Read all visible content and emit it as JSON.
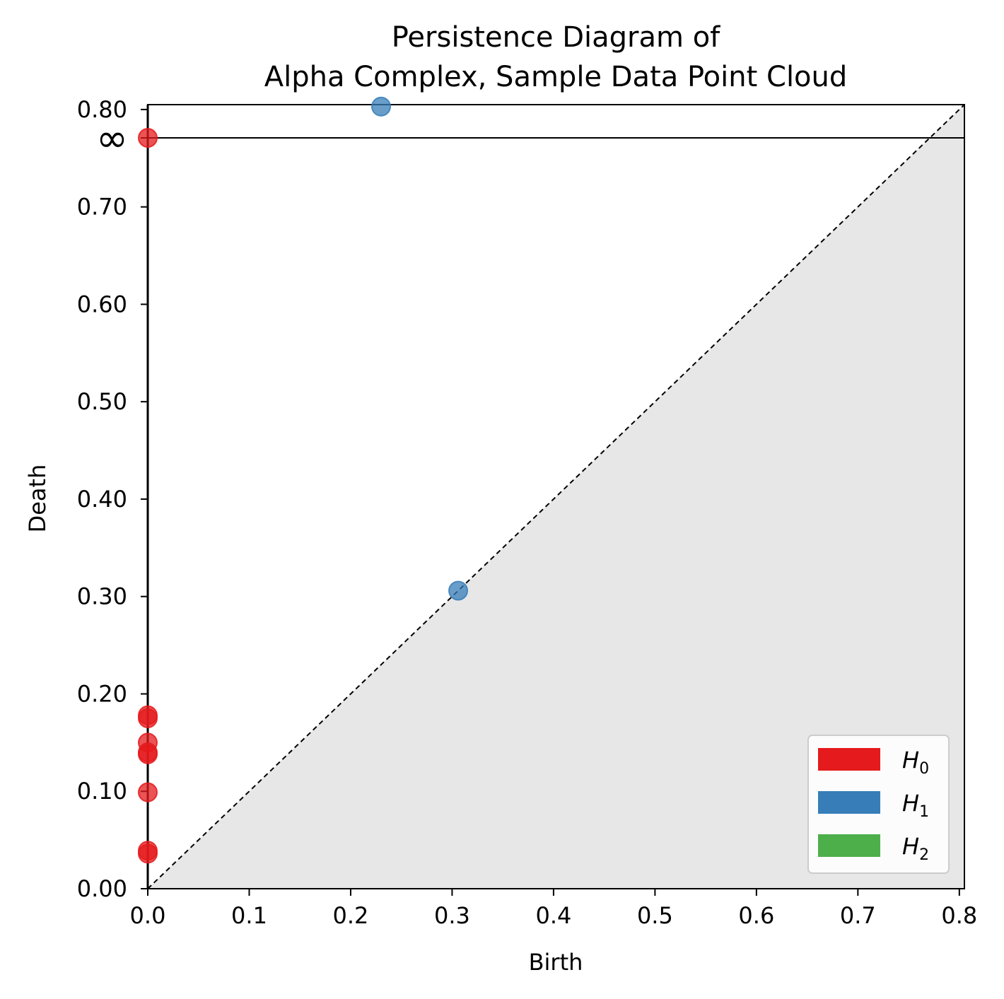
{
  "chart_data": {
    "type": "scatter",
    "title_lines": [
      "Persistence Diagram of",
      "Alpha Complex, Sample Data Point Cloud"
    ],
    "xlabel": "Birth",
    "ylabel": "Death",
    "xlim": [
      0.0,
      0.805
    ],
    "ylim": [
      0.0,
      0.805
    ],
    "infinity_label": "∞",
    "x_ticks": [
      "0.0",
      "0.1",
      "0.2",
      "0.3",
      "0.4",
      "0.5",
      "0.6",
      "0.7",
      "0.8"
    ],
    "x_tick_values": [
      0.0,
      0.1,
      0.2,
      0.3,
      0.4,
      0.5,
      0.6,
      0.7,
      0.8
    ],
    "y_ticks": [
      "0.00",
      "0.10",
      "0.20",
      "0.30",
      "0.40",
      "0.50",
      "0.60",
      "0.70",
      "0.80"
    ],
    "y_tick_values": [
      0.0,
      0.1,
      0.2,
      0.3,
      0.4,
      0.5,
      0.6,
      0.7,
      0.8
    ],
    "diagonal": true,
    "shade_below_diagonal": true,
    "legend_position": "lower right",
    "series": [
      {
        "name": "H0",
        "label_main": "H",
        "label_sub": "0",
        "color": "#e41a1c",
        "points": [
          {
            "birth": 0.0,
            "death": "inf"
          },
          {
            "birth": 0.0,
            "death": 0.178
          },
          {
            "birth": 0.0,
            "death": 0.175
          },
          {
            "birth": 0.0,
            "death": 0.15
          },
          {
            "birth": 0.0,
            "death": 0.14
          },
          {
            "birth": 0.0,
            "death": 0.138
          },
          {
            "birth": 0.0,
            "death": 0.099
          },
          {
            "birth": 0.0,
            "death": 0.039
          },
          {
            "birth": 0.0,
            "death": 0.036
          }
        ]
      },
      {
        "name": "H1",
        "label_main": "H",
        "label_sub": "1",
        "color": "#377eb8",
        "points": [
          {
            "birth": 0.23,
            "death": 0.803
          },
          {
            "birth": 0.306,
            "death": 0.306
          }
        ]
      },
      {
        "name": "H2",
        "label_main": "H",
        "label_sub": "2",
        "color": "#4daf4a",
        "points": []
      }
    ]
  }
}
